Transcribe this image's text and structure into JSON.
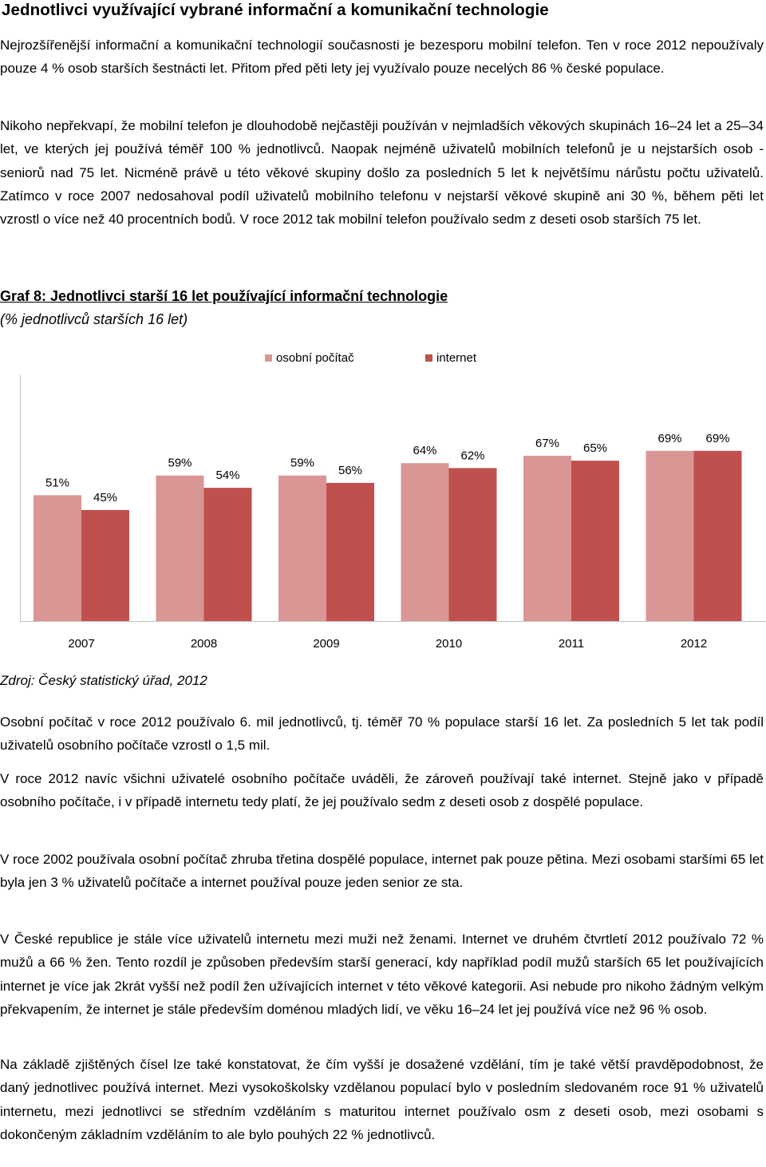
{
  "heading": "Jednotlivci využívající vybrané informační a komunikační technologie",
  "paragraphs": {
    "p1": "Nejrozšířenější informační a komunikační technologií současnosti je bezesporu mobilní telefon. Ten v roce 2012 nepoužívaly pouze 4 % osob starších šestnácti let. Přitom před pěti lety jej využívalo pouze necelých 86 % české populace.",
    "p2": "Nikoho nepřekvapí, že mobilní telefon je dlouhodobě nejčastěji používán v nejmladších věkových skupinách 16–24 let a 25–34 let, ve kterých jej používá téměř 100 % jednotlivců. Naopak nejméně uživatelů mobilních telefonů je u nejstarších osob - seniorů nad 75 let. Nicméně právě u této věkové skupiny došlo za posledních 5 let k největšímu nárůstu počtu uživatelů. Zatímco v roce 2007 nedosahoval podíl uživatelů mobilního telefonu v nejstarší věkové skupině ani 30 %, během pěti let vzrostl o více než 40 procentních bodů. V roce 2012 tak mobilní telefon používalo sedm z deseti osob starších 75 let.",
    "p3": "Osobní počítač v roce 2012 používalo 6. mil jednotlivců, tj. téměř 70 % populace starší 16 let. Za posledních 5 let tak podíl uživatelů osobního počítače vzrostl o 1,5 mil.",
    "p4": "V roce 2012 navíc všichni uživatelé osobního počítače uváděli, že zároveň používají také internet. Stejně jako v případě osobního počítače, i v případě internetu tedy platí, že jej používalo sedm z deseti osob z dospělé populace.",
    "p5": "V roce 2002 používala osobní počítač zhruba třetina dospělé populace, internet pak pouze pětina. Mezi osobami staršími 65 let byla jen 3 % uživatelů počítače a internet používal pouze jeden senior ze sta.",
    "p6": "V České republice je stále více uživatelů internetu mezi muži než ženami. Internet ve druhém čtvrtletí 2012 používalo 72 % mužů a 66 % žen. Tento rozdíl je způsoben především starší generací, kdy například podíl mužů starších 65 let používajících internet je více jak 2krát vyšší než podíl žen užívajících internet v této věkové kategorii. Asi nebude pro nikoho žádným velkým překvapením, že internet je stále především doménou mladých lidí, ve věku 16–24 let jej používá více než 96 % osob.",
    "p7": "Na základě zjištěných čísel lze také konstatovat, že čím vyšší je dosažené vzdělání, tím je také větší pravděpodobnost, že daný jednotlivec používá internet. Mezi vysokoškolsky vzdělanou populací bylo v posledním sledovaném roce 91 % uživatelů internetu, mezi jednotlivci se středním vzděláním s maturitou internet používalo osm z deseti osob, mezi osobami s dokončeným základním vzděláním to ale bylo pouhých 22 % jednotlivců."
  },
  "caption": {
    "title": "Graf 8: Jednotlivci starší 16 let používající informační technologie",
    "unit": "(% jednotlivců starších 16 let)"
  },
  "source": "Zdroj: Český statistický úřad, 2012",
  "colors": {
    "pc": "#d99694",
    "internet": "#c0504d",
    "axis": "#bfbfbf"
  },
  "chart_data": {
    "type": "bar",
    "categories": [
      "2007",
      "2008",
      "2009",
      "2010",
      "2011",
      "2012"
    ],
    "series": [
      {
        "name": "osobní počítač",
        "values": [
          51,
          59,
          59,
          64,
          67,
          69
        ],
        "labels": [
          "51%",
          "59%",
          "59%",
          "64%",
          "67%",
          "69%"
        ]
      },
      {
        "name": "internet",
        "values": [
          45,
          54,
          56,
          62,
          65,
          69
        ],
        "labels": [
          "45%",
          "54%",
          "56%",
          "62%",
          "65%",
          "69%"
        ]
      }
    ],
    "legend_position": "top",
    "grid": false
  }
}
